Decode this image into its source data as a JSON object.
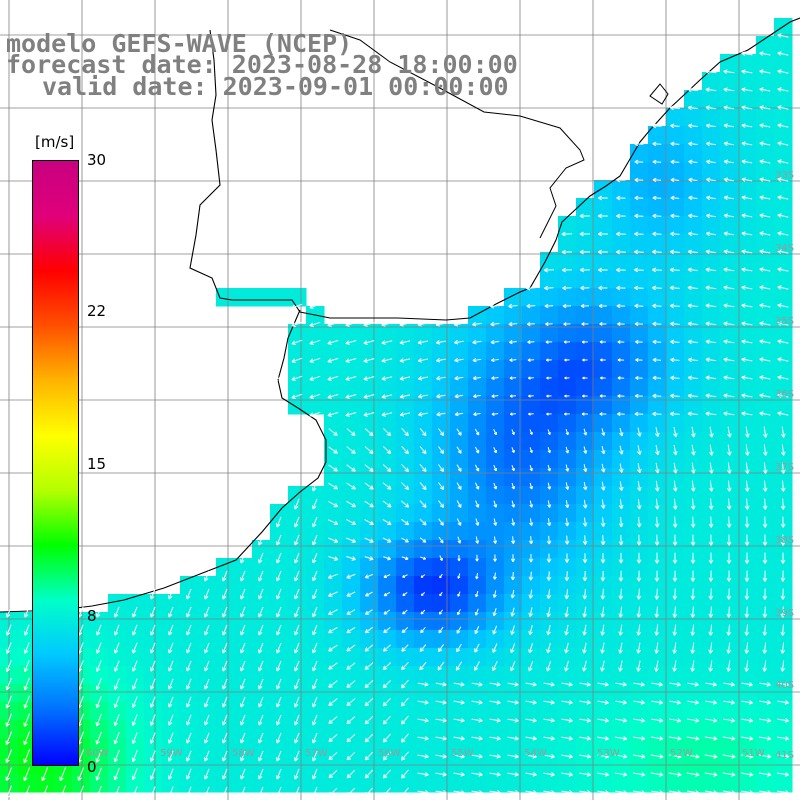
{
  "title": {
    "line1": "modelo GEFS-WAVE (NCEP)",
    "line2": "forecast date: 2023-08-28 18:00:00",
    "line3": "valid date: 2023-09-01 00:00:00"
  },
  "colorbar": {
    "unit": "[m/s]",
    "ticks": [
      "30",
      "22",
      "15",
      "8",
      "0"
    ],
    "colors": [
      "#0000ff",
      "#0070ff",
      "#00c8ff",
      "#00ffc8",
      "#00ff00",
      "#b4ff00",
      "#ffff00",
      "#ffb400",
      "#ff5000",
      "#ff0000",
      "#e0007a",
      "#c80080"
    ]
  },
  "grid_labels": {
    "lat": [
      "32S",
      "33S",
      "34S",
      "35S",
      "36S",
      "37S",
      "38S",
      "39S",
      "40S",
      "41S"
    ],
    "lon": [
      "60W",
      "59W",
      "58W",
      "57W",
      "56W",
      "55W",
      "54W",
      "53W",
      "52W",
      "51W"
    ]
  },
  "map": {
    "wind_speed_range_ms": [
      0,
      30
    ],
    "land_color": "#ffffff",
    "coast_color": "#000000",
    "grid_color": "#808080",
    "arrow_color": "#ffffff"
  }
}
